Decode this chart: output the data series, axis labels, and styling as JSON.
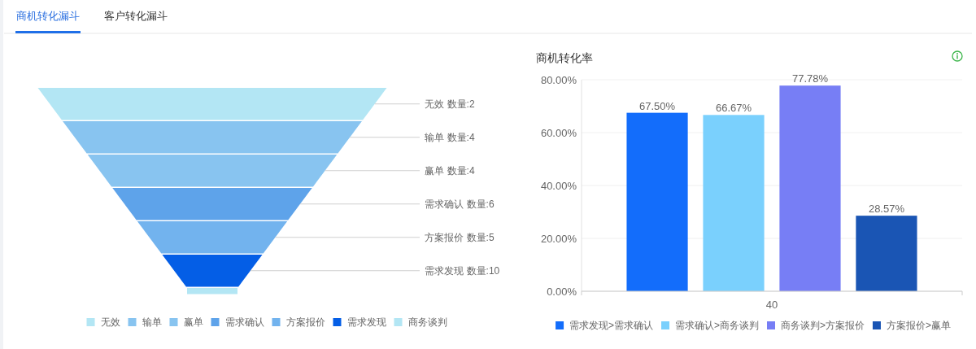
{
  "chart_data": [
    {
      "type": "other",
      "annotations": [
        "商机转化漏斗",
        "客户转化漏斗"
      ],
      "ylabel": "数量:",
      "series": [
        {
          "name": "无效",
          "color": "#b3e6f4",
          "values": [
            2
          ]
        },
        {
          "name": "输单",
          "color": "#88c4f0",
          "values": [
            4
          ]
        },
        {
          "name": "赢单",
          "color": "#88c4f0",
          "values": [
            4
          ]
        },
        {
          "name": "需求确认",
          "color": "#5ea3ea",
          "values": [
            6
          ]
        },
        {
          "name": "方案报价",
          "color": "#72b3ee",
          "values": [
            5
          ]
        },
        {
          "name": "需求发现",
          "color": "#045ee6",
          "values": [
            10
          ]
        },
        {
          "name": "商务谈判",
          "color": "#b3e6f4",
          "values": [
            null
          ]
        }
      ],
      "data_labels": true,
      "legend": "bottom"
    },
    {
      "type": "bar",
      "title": "商机转化率",
      "categories": [
        "40"
      ],
      "series": [
        {
          "name": "需求发现>需求确认",
          "color": "#136dfb",
          "values": [
            67.5
          ],
          "value_labels": [
            "67.50%"
          ]
        },
        {
          "name": "需求确认>商务谈判",
          "color": "#7ad0fd",
          "values": [
            66.67
          ],
          "value_labels": [
            "66.67%"
          ]
        },
        {
          "name": "商务谈判>方案报价",
          "color": "#777ef5",
          "values": [
            77.78
          ],
          "value_labels": [
            "77.78%"
          ]
        },
        {
          "name": "方案报价>赢单",
          "color": "#1a55b4",
          "values": [
            28.57
          ],
          "value_labels": [
            "28.57%"
          ]
        }
      ],
      "ylim": [
        0,
        80
      ],
      "yticks": [
        {
          "value": 0,
          "label": "0.00%"
        },
        {
          "value": 20,
          "label": "20.00%"
        },
        {
          "value": 40,
          "label": "40.00%"
        },
        {
          "value": 60,
          "label": "60.00%"
        },
        {
          "value": 80,
          "label": "80.00%"
        }
      ],
      "grid": "y",
      "legend": "bottom"
    }
  ]
}
